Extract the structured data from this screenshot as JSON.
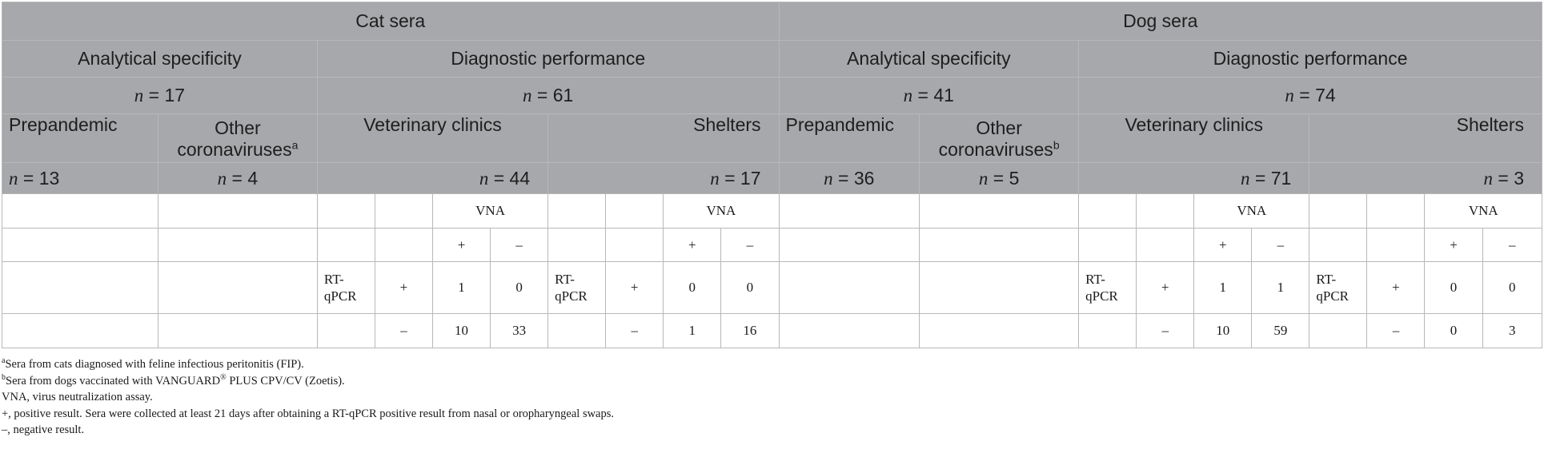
{
  "header": {
    "cat": "Cat sera",
    "dog": "Dog sera",
    "analytical": "Analytical specificity",
    "diagnostic": "Diagnostic performance",
    "n_label": "n",
    "eq": " = ",
    "n_cat_analytical": "17",
    "n_cat_diagnostic": "61",
    "n_dog_analytical": "41",
    "n_dog_diagnostic": "74",
    "prepandemic": "Prepandemic",
    "other1": "Other",
    "other2": "coronaviruses",
    "sup_a": "a",
    "sup_b": "b",
    "vet": "Veterinary clinics",
    "shelters": "Shelters",
    "n_cat_prepandemic": "13",
    "n_cat_other": "4",
    "n_cat_vet": "44",
    "n_cat_shelters": "17",
    "n_dog_prepandemic": "36",
    "n_dog_other": "5",
    "n_dog_vet": "71",
    "n_dog_shelters": "3"
  },
  "body": {
    "vna": "VNA",
    "plus": "+",
    "minus": "–",
    "rt1": "RT-",
    "rt2": "qPCR",
    "cat_vet": {
      "pp": "1",
      "pm": "0",
      "mp": "10",
      "mm": "33"
    },
    "cat_shelters": {
      "pp": "0",
      "pm": "0",
      "mp": "1",
      "mm": "16"
    },
    "dog_vet": {
      "pp": "1",
      "pm": "1",
      "mp": "10",
      "mm": "59"
    },
    "dog_shelters": {
      "pp": "0",
      "pm": "0",
      "mp": "0",
      "mm": "3"
    }
  },
  "footnotes": {
    "a_mark": "a",
    "a_text": "Sera from cats diagnosed with feline infectious peritonitis (FIP).",
    "b_mark": "b",
    "b_text_1": "Sera from dogs vaccinated with VANGUARD",
    "b_reg": "®",
    "b_text_2": " PLUS CPV/CV (Zoetis).",
    "vna": "VNA, virus neutralization assay.",
    "positive": "+, positive result. Sera were collected at least 21 days after obtaining a RT-qPCR positive result from nasal or oropharyngeal swaps.",
    "negative": "–, negative result."
  }
}
